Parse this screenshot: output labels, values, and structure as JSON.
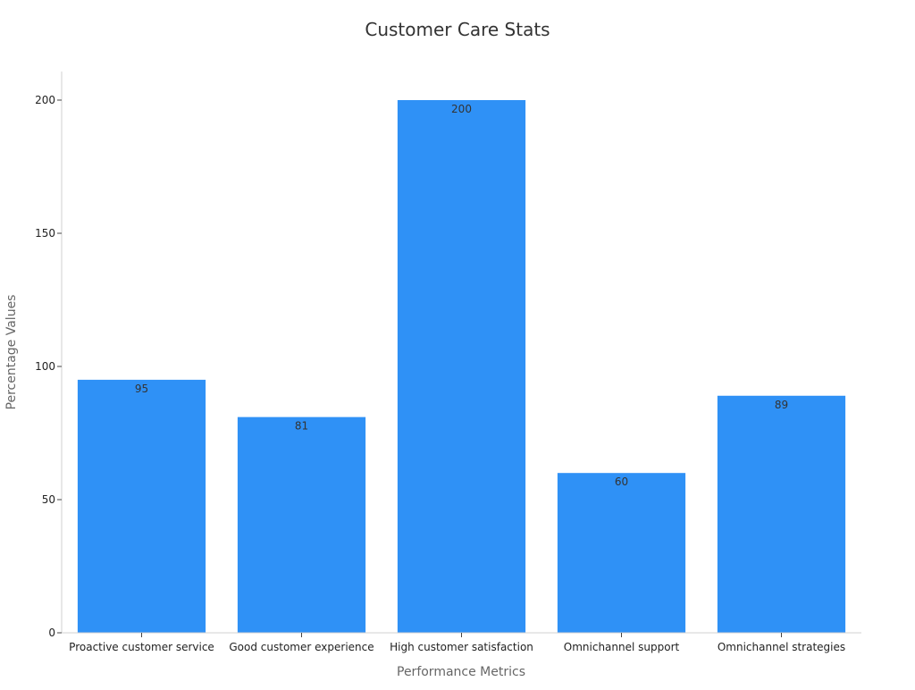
{
  "chart_data": {
    "type": "bar",
    "title": "Customer Care Stats",
    "xlabel": "Performance Metrics",
    "ylabel": "Percentage Values",
    "categories": [
      "Proactive customer service",
      "Good customer experience",
      "High customer satisfaction",
      "Omnichannel support",
      "Omnichannel strategies"
    ],
    "values": [
      95,
      81,
      200,
      60,
      89
    ],
    "ylim": [
      0,
      210
    ],
    "yticks": [
      0,
      50,
      100,
      150,
      200
    ],
    "grid": false,
    "bar_color": "#2f91f6",
    "data_labels": true
  }
}
